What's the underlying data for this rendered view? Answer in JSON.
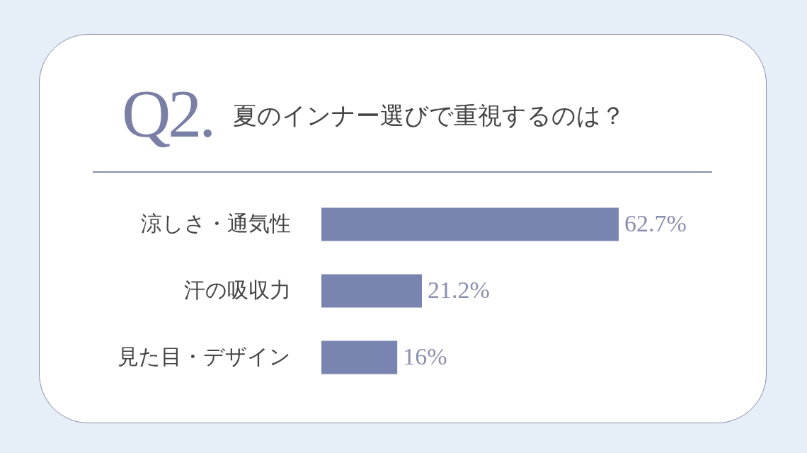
{
  "chart_data": {
    "type": "bar",
    "orientation": "horizontal",
    "title": "Q2.",
    "subtitle": "夏のインナー選びで重視するのは？",
    "categories": [
      "涼しさ・通気性",
      "汗の吸収力",
      "見た目・デザイン"
    ],
    "values": [
      62.7,
      21.2,
      16
    ],
    "value_labels": [
      "62.7%",
      "21.2%",
      "16%"
    ],
    "color": "#7a84b0"
  }
}
